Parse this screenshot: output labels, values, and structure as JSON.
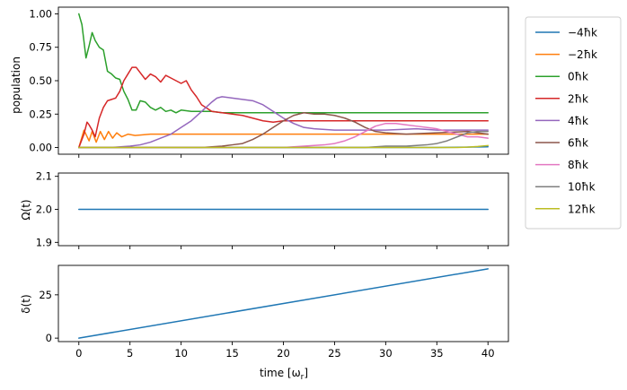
{
  "chart_data": [
    {
      "type": "line",
      "ylabel": "population",
      "xlim": [
        -2,
        42
      ],
      "ylim": [
        -0.05,
        1.05
      ],
      "yticks": [
        "0.00",
        "0.25",
        "0.50",
        "0.75",
        "1.00"
      ],
      "legend_position": "outside-right",
      "series": [
        {
          "name": "−4ħk",
          "color": "#1f77b4",
          "x": [
            0,
            10,
            20,
            30,
            35,
            40
          ],
          "y": [
            0.0,
            0.0,
            0.0,
            0.0,
            0.0,
            0.005
          ]
        },
        {
          "name": "−2ħk",
          "color": "#ff7f0e",
          "x": [
            0,
            0.5,
            1.0,
            1.3,
            1.7,
            2.1,
            2.5,
            2.9,
            3.3,
            3.7,
            4.2,
            4.8,
            5.5,
            7,
            10,
            20,
            30,
            40
          ],
          "y": [
            0.0,
            0.13,
            0.05,
            0.12,
            0.04,
            0.12,
            0.06,
            0.12,
            0.07,
            0.11,
            0.08,
            0.1,
            0.09,
            0.1,
            0.1,
            0.1,
            0.1,
            0.1
          ]
        },
        {
          "name": "0ħk",
          "color": "#2ca02c",
          "x": [
            0,
            0.3,
            0.7,
            1.0,
            1.3,
            1.6,
            2.0,
            2.4,
            2.8,
            3.2,
            3.6,
            4.0,
            4.4,
            4.8,
            5.2,
            5.6,
            6.0,
            6.5,
            7.0,
            7.5,
            8.0,
            8.5,
            9.0,
            9.5,
            10,
            11,
            12,
            13,
            14,
            16,
            20,
            30,
            40
          ],
          "y": [
            1.0,
            0.92,
            0.67,
            0.76,
            0.86,
            0.8,
            0.75,
            0.73,
            0.57,
            0.55,
            0.52,
            0.51,
            0.42,
            0.36,
            0.28,
            0.28,
            0.35,
            0.34,
            0.3,
            0.28,
            0.3,
            0.27,
            0.28,
            0.26,
            0.28,
            0.27,
            0.27,
            0.27,
            0.26,
            0.26,
            0.26,
            0.26,
            0.26
          ]
        },
        {
          "name": "2ħk",
          "color": "#d62728",
          "x": [
            0,
            0.5,
            0.8,
            1.0,
            1.3,
            1.6,
            2.0,
            2.4,
            2.8,
            3.2,
            3.6,
            4.0,
            4.4,
            4.8,
            5.2,
            5.6,
            6.0,
            6.5,
            7.0,
            7.5,
            8.0,
            8.5,
            9.0,
            9.5,
            10,
            10.5,
            11,
            11.5,
            12,
            13,
            14,
            15,
            16,
            17,
            18,
            19,
            20,
            22,
            25,
            30,
            35,
            40
          ],
          "y": [
            0.0,
            0.1,
            0.19,
            0.17,
            0.13,
            0.08,
            0.22,
            0.3,
            0.35,
            0.36,
            0.37,
            0.42,
            0.5,
            0.55,
            0.6,
            0.6,
            0.56,
            0.51,
            0.55,
            0.53,
            0.49,
            0.54,
            0.52,
            0.5,
            0.48,
            0.5,
            0.43,
            0.38,
            0.32,
            0.27,
            0.26,
            0.25,
            0.24,
            0.22,
            0.2,
            0.19,
            0.2,
            0.2,
            0.2,
            0.2,
            0.2,
            0.2
          ]
        },
        {
          "name": "4ħk",
          "color": "#9467bd",
          "x": [
            0,
            3,
            5,
            6,
            7,
            8,
            9,
            10,
            11,
            12,
            13,
            13.5,
            14,
            15,
            16,
            17,
            18,
            19,
            20,
            21,
            22,
            23,
            25,
            28,
            30,
            33,
            35,
            38,
            40
          ],
          "y": [
            0.0,
            0.0,
            0.01,
            0.02,
            0.04,
            0.07,
            0.1,
            0.15,
            0.2,
            0.27,
            0.34,
            0.37,
            0.38,
            0.37,
            0.36,
            0.35,
            0.32,
            0.27,
            0.22,
            0.18,
            0.15,
            0.14,
            0.13,
            0.13,
            0.13,
            0.14,
            0.13,
            0.13,
            0.13
          ]
        },
        {
          "name": "6ħk",
          "color": "#8c564b",
          "x": [
            0,
            8,
            10,
            12,
            14,
            15,
            16,
            17,
            18,
            19,
            20,
            21,
            22,
            23,
            24,
            25,
            26,
            27,
            28,
            29,
            30,
            32,
            35,
            38,
            40
          ],
          "y": [
            0.0,
            0.0,
            0.0,
            0.0,
            0.01,
            0.02,
            0.03,
            0.06,
            0.1,
            0.15,
            0.2,
            0.24,
            0.26,
            0.25,
            0.25,
            0.24,
            0.22,
            0.19,
            0.15,
            0.12,
            0.11,
            0.1,
            0.11,
            0.12,
            0.1
          ]
        },
        {
          "name": "8ħk",
          "color": "#e377c2",
          "x": [
            0,
            15,
            20,
            22,
            24,
            25,
            26,
            27,
            28,
            29,
            30,
            31,
            32,
            33,
            34,
            35,
            36,
            37,
            38,
            39,
            40
          ],
          "y": [
            0.0,
            0.0,
            0.0,
            0.01,
            0.02,
            0.03,
            0.05,
            0.08,
            0.12,
            0.16,
            0.18,
            0.18,
            0.17,
            0.16,
            0.15,
            0.14,
            0.12,
            0.1,
            0.08,
            0.08,
            0.07
          ]
        },
        {
          "name": "10ħk",
          "color": "#7f7f7f",
          "x": [
            0,
            20,
            25,
            28,
            30,
            32,
            34,
            35,
            36,
            37,
            38,
            39,
            40
          ],
          "y": [
            0.0,
            0.0,
            0.0,
            0.0,
            0.01,
            0.01,
            0.02,
            0.03,
            0.05,
            0.08,
            0.11,
            0.12,
            0.12
          ]
        },
        {
          "name": "12ħk",
          "color": "#bcbd22",
          "x": [
            0,
            30,
            35,
            37,
            38,
            39,
            40
          ],
          "y": [
            0.0,
            0.0,
            0.0,
            0.0,
            0.003,
            0.008,
            0.015
          ]
        }
      ]
    },
    {
      "type": "line",
      "ylabel": "Ω(t)",
      "xlim": [
        -2,
        42
      ],
      "ylim": [
        1.89,
        2.11
      ],
      "yticks": [
        "1.9",
        "2.0",
        "2.1"
      ],
      "series": [
        {
          "color": "#1f77b4",
          "x": [
            0,
            40
          ],
          "y": [
            2.0,
            2.0
          ]
        }
      ]
    },
    {
      "type": "line",
      "ylabel": "δ(t)",
      "xlabel": "time [ω",
      "xlabel_subscript": "r",
      "xlabel_suffix": "]",
      "xlim": [
        -2,
        42
      ],
      "ylim": [
        -2,
        42
      ],
      "yticks": [
        "0",
        "25"
      ],
      "xticks": [
        "0",
        "5",
        "10",
        "15",
        "20",
        "25",
        "30",
        "35",
        "40"
      ],
      "series": [
        {
          "color": "#1f77b4",
          "x": [
            0,
            40
          ],
          "y": [
            0,
            40
          ]
        }
      ]
    }
  ]
}
